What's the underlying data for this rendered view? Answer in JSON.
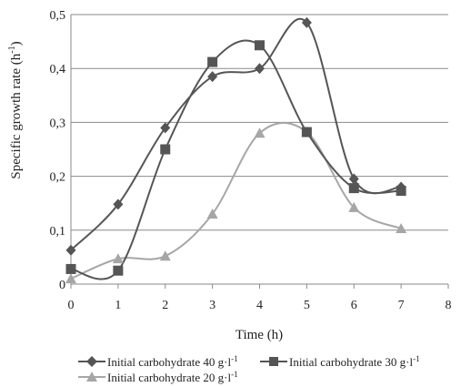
{
  "chart_data": {
    "type": "line",
    "xlabel": "Time (h)",
    "ylabel": "Specific growth rate (h",
    "ylabel_sup": "-1",
    "ylabel_end": ")",
    "xlim": [
      0,
      8
    ],
    "ylim": [
      0,
      0.5
    ],
    "x_ticks": [
      0,
      1,
      2,
      3,
      4,
      5,
      6,
      7,
      8
    ],
    "x_tick_labels": [
      "0",
      "1",
      "2",
      "3",
      "4",
      "5",
      "6",
      "7",
      "8"
    ],
    "y_ticks": [
      0,
      0.1,
      0.2,
      0.3,
      0.4,
      0.5
    ],
    "y_tick_labels": [
      "0",
      "0,1",
      "0,2",
      "0,3",
      "0,4",
      "0,5"
    ],
    "grid": "horizontal",
    "legend_position": "bottom",
    "x": [
      0,
      1,
      2,
      3,
      4,
      5,
      6,
      7
    ],
    "series": [
      {
        "name": "Initial carbohydrate 40 g·l",
        "unit_sup": "-1",
        "marker": "diamond",
        "color": "#555555",
        "values": [
          0.063,
          0.148,
          0.29,
          0.385,
          0.4,
          0.485,
          0.195,
          0.18
        ]
      },
      {
        "name": "Initial carbohydrate 30 g·l",
        "unit_sup": "-1",
        "marker": "square",
        "color": "#555555",
        "values": [
          0.028,
          0.025,
          0.25,
          0.412,
          0.443,
          0.282,
          0.178,
          0.173
        ]
      },
      {
        "name": "Initial carbohydrate 20 g·l",
        "unit_sup": "-1",
        "marker": "triangle",
        "color": "#a6a6a6",
        "values": [
          0.01,
          0.047,
          0.052,
          0.13,
          0.28,
          0.282,
          0.142,
          0.103
        ]
      }
    ]
  }
}
